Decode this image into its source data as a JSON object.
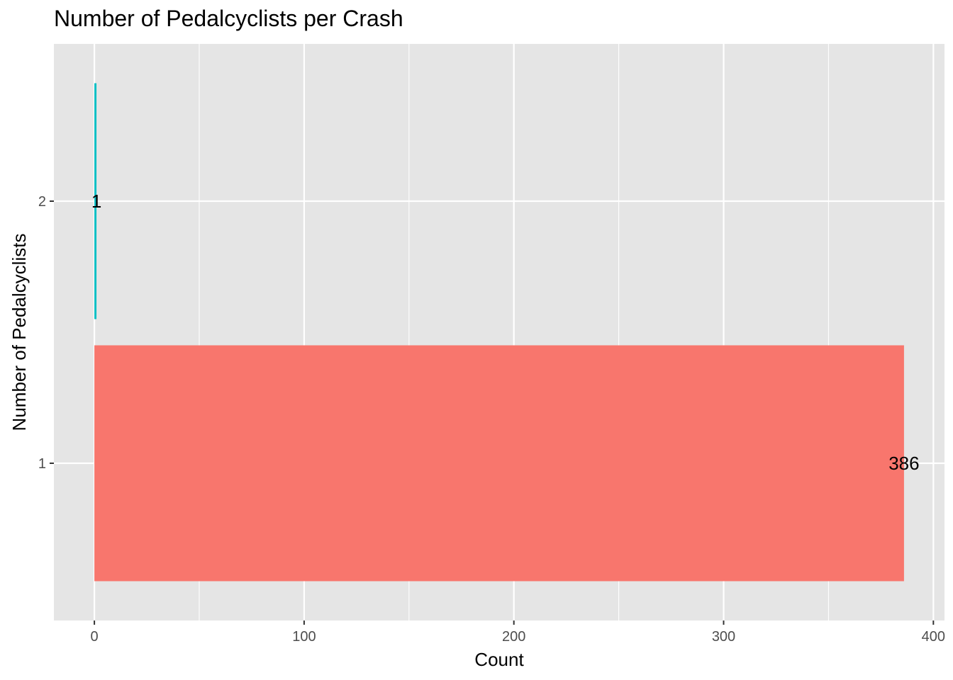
{
  "chart_data": {
    "type": "bar",
    "orientation": "horizontal",
    "title": "Number of Pedalcyclists per Crash",
    "xlabel": "Count",
    "ylabel": "Number of Pedalcyclists",
    "categories": [
      "1",
      "2"
    ],
    "values": [
      386,
      1
    ],
    "data_labels": [
      "386",
      "1"
    ],
    "bar_colors": [
      "#F8766D",
      "#00BFC4"
    ],
    "xlim": [
      -19.3,
      405.3
    ],
    "x_ticks": [
      0,
      100,
      200,
      300,
      400
    ],
    "x_tick_labels": [
      "0",
      "100",
      "200",
      "300",
      "400"
    ],
    "grid": true,
    "legend": "none",
    "panel_background": "#E5E5E5",
    "grid_color": "#FFFFFF"
  }
}
